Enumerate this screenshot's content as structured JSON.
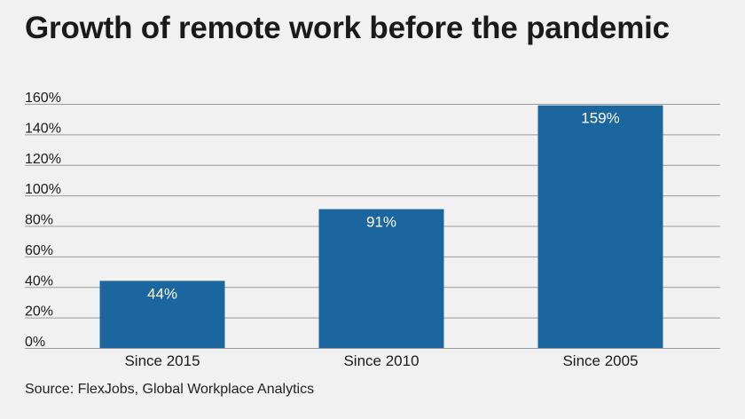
{
  "title": "Growth of remote work before the pandemic",
  "source": "Source: FlexJobs, Global Workplace Analytics",
  "colors": {
    "bar": "#1c66a0",
    "grid": "#9a9a9a",
    "bar_label": "#ffffff",
    "text": "#1a1a1a"
  },
  "chart_data": {
    "type": "bar",
    "categories": [
      "Since 2015",
      "Since 2010",
      "Since 2005"
    ],
    "values": [
      44,
      91,
      159
    ],
    "data_labels": [
      "44%",
      "91%",
      "159%"
    ],
    "yticks": [
      "0%",
      "20%",
      "40%",
      "60%",
      "80%",
      "100%",
      "120%",
      "140%",
      "160%"
    ],
    "ylim": [
      0,
      160
    ],
    "grid": true,
    "title": "Growth of remote work before the pandemic",
    "xlabel": "",
    "ylabel": ""
  }
}
